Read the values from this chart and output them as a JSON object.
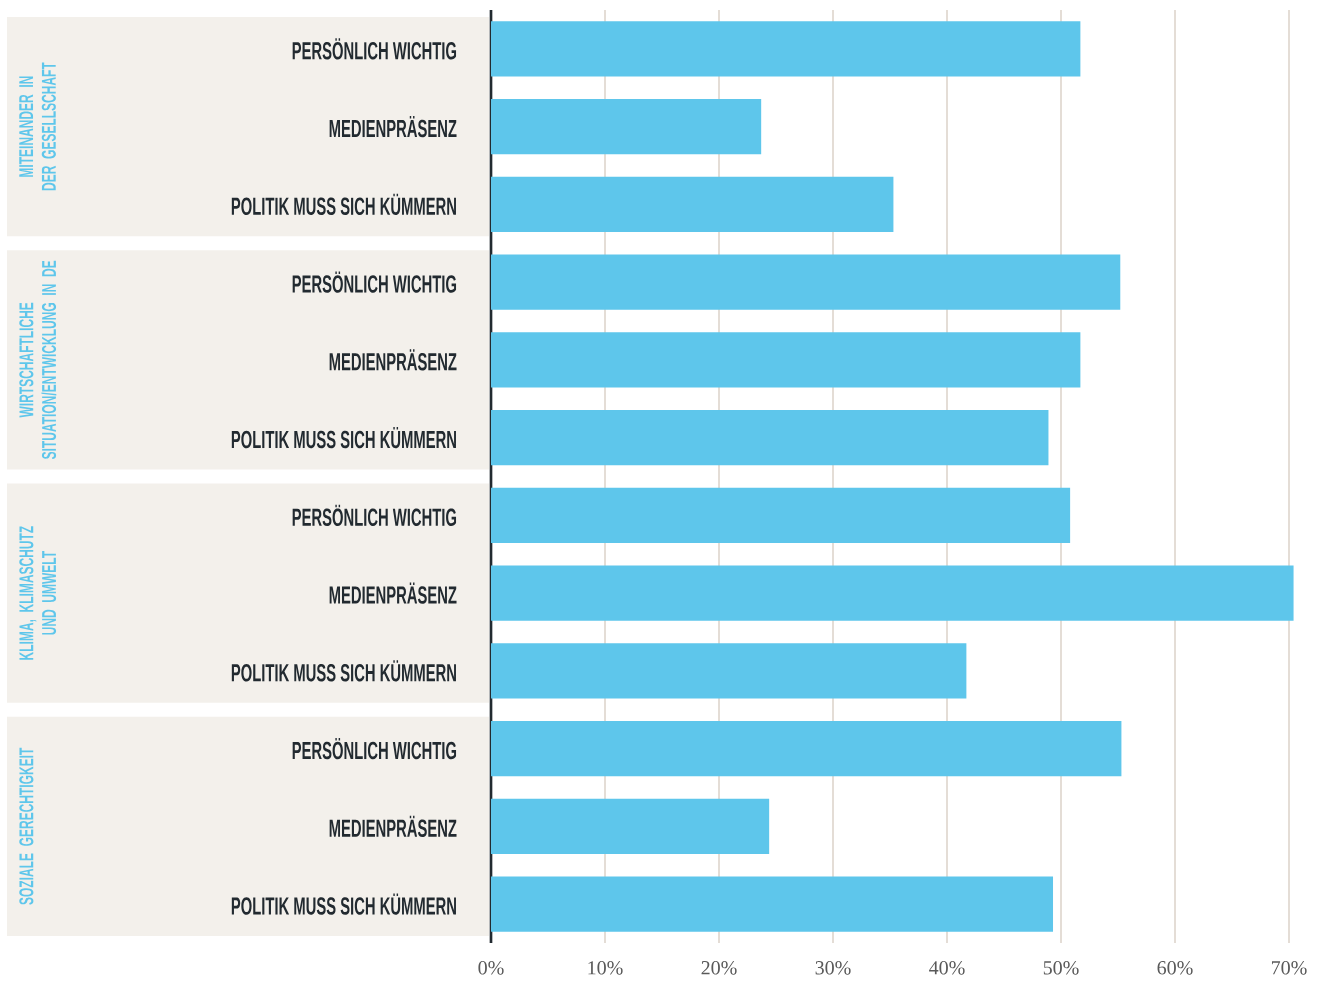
{
  "chart_data": {
    "type": "bar",
    "orientation": "horizontal",
    "categories": [
      "PERSÖNLICH WICHTIG",
      "MEDIENPRÄSENZ",
      "POLITIK MUSS SICH KÜMMERN",
      "PERSÖNLICH WICHTIG",
      "MEDIENPRÄSENZ",
      "POLITIK MUSS SICH KÜMMERN",
      "PERSÖNLICH WICHTIG",
      "MEDIENPRÄSENZ",
      "POLITIK MUSS SICH KÜMMERN",
      "PERSÖNLICH WICHTIG",
      "MEDIENPRÄSENZ",
      "POLITIK MUSS SICH KÜMMERN"
    ],
    "values": [
      51.7,
      23.7,
      35.3,
      55.2,
      51.7,
      48.9,
      50.8,
      70.4,
      41.7,
      55.3,
      24.4,
      49.3
    ],
    "color": "#5ec6eb",
    "xticks": [
      {
        "value": 0,
        "label": "0%"
      },
      {
        "value": 10,
        "label": "10%"
      },
      {
        "value": 20,
        "label": "20%"
      },
      {
        "value": 30,
        "label": "30%"
      },
      {
        "value": 40,
        "label": "40%"
      },
      {
        "value": 50,
        "label": "50%"
      },
      {
        "value": 60,
        "label": "60%"
      },
      {
        "value": 70,
        "label": "70%"
      }
    ],
    "xlim": [
      0,
      70.4
    ],
    "grid": "x",
    "annotations": [
      "MITEINANDER IN DER GESELLSCHAFT",
      "WIRTSCHAFTLICHE SITUATION/ENTWICKLUNG IN DE",
      "KLIMA, KLIMASCHUTZ UND UMWELT",
      "SOZIALE GERECHTIGKEIT"
    ]
  }
}
